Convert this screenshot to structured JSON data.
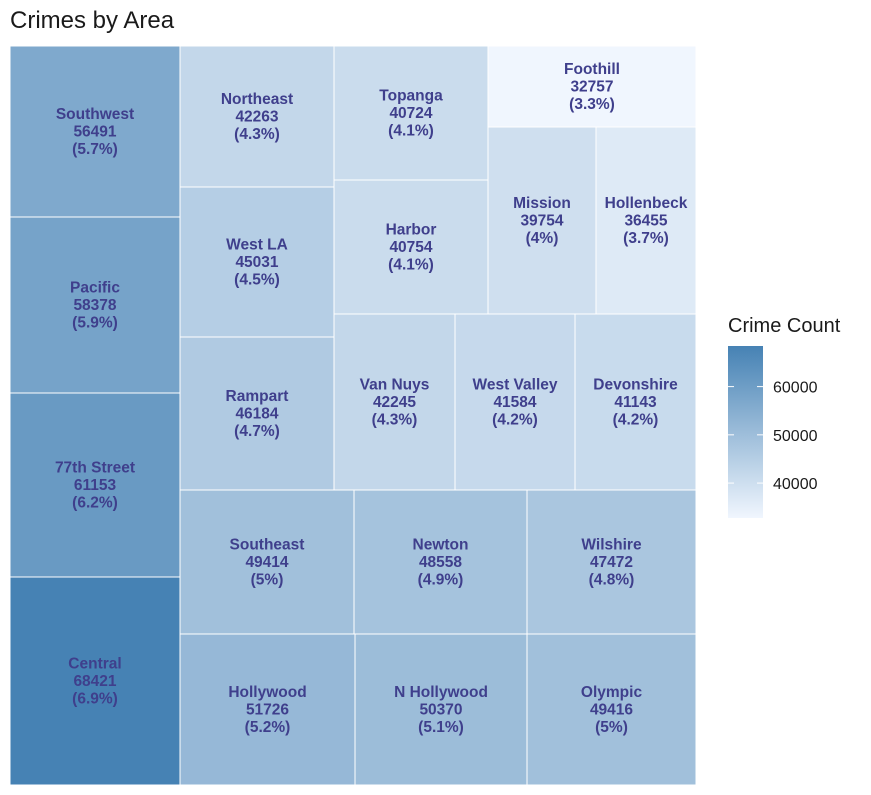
{
  "chart_data": {
    "type": "treemap",
    "title": "Crimes by Area",
    "legend": {
      "title": "Crime Count",
      "ticks": [
        40000,
        50000,
        60000
      ],
      "range": [
        32757,
        68421
      ],
      "color_low": "#f0f6fe",
      "color_high": "#4682b4"
    },
    "items": [
      {
        "name": "Southwest",
        "value": 56491,
        "pct": "(5.7%)"
      },
      {
        "name": "Pacific",
        "value": 58378,
        "pct": "(5.9%)"
      },
      {
        "name": "77th Street",
        "value": 61153,
        "pct": "(6.2%)"
      },
      {
        "name": "Central",
        "value": 68421,
        "pct": "(6.9%)"
      },
      {
        "name": "Northeast",
        "value": 42263,
        "pct": "(4.3%)"
      },
      {
        "name": "West LA",
        "value": 45031,
        "pct": "(4.5%)"
      },
      {
        "name": "Rampart",
        "value": 46184,
        "pct": "(4.7%)"
      },
      {
        "name": "Topanga",
        "value": 40724,
        "pct": "(4.1%)"
      },
      {
        "name": "Harbor",
        "value": 40754,
        "pct": "(4.1%)"
      },
      {
        "name": "Foothill",
        "value": 32757,
        "pct": "(3.3%)"
      },
      {
        "name": "Mission",
        "value": 39754,
        "pct": "(4%)"
      },
      {
        "name": "Hollenbeck",
        "value": 36455,
        "pct": "(3.7%)"
      },
      {
        "name": "Van Nuys",
        "value": 42245,
        "pct": "(4.3%)"
      },
      {
        "name": "West Valley",
        "value": 41584,
        "pct": "(4.2%)"
      },
      {
        "name": "Devonshire",
        "value": 41143,
        "pct": "(4.2%)"
      },
      {
        "name": "Southeast",
        "value": 49414,
        "pct": "(5%)"
      },
      {
        "name": "Newton",
        "value": 48558,
        "pct": "(4.9%)"
      },
      {
        "name": "Wilshire",
        "value": 47472,
        "pct": "(4.8%)"
      },
      {
        "name": "Hollywood",
        "value": 51726,
        "pct": "(5.2%)"
      },
      {
        "name": "N Hollywood",
        "value": 50370,
        "pct": "(5.1%)"
      },
      {
        "name": "Olympic",
        "value": 49416,
        "pct": "(5%)"
      }
    ]
  }
}
